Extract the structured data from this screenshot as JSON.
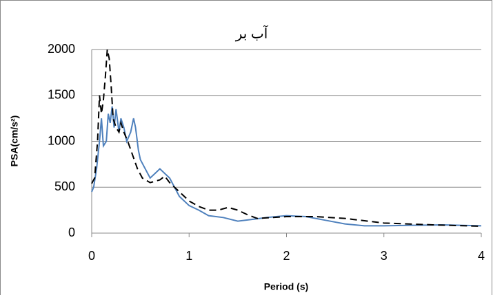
{
  "chart_data": {
    "type": "line",
    "title": "آب بر",
    "x_label": "Period (s)",
    "y_label": "PSA(cm/s²)",
    "xlim": [
      0,
      4
    ],
    "ylim": [
      0,
      2000
    ],
    "xticks": [
      0,
      1,
      2,
      3,
      4
    ],
    "yticks": [
      0,
      500,
      1000,
      1500,
      2000
    ],
    "grid": true,
    "series": [
      {
        "color": "#4f81bd",
        "dash": false,
        "x": [
          0,
          0.02,
          0.05,
          0.08,
          0.1,
          0.12,
          0.15,
          0.17,
          0.19,
          0.21,
          0.23,
          0.25,
          0.28,
          0.3,
          0.33,
          0.36,
          0.4,
          0.43,
          0.45,
          0.48,
          0.5,
          0.55,
          0.6,
          0.65,
          0.7,
          0.75,
          0.8,
          0.85,
          0.9,
          1.0,
          1.1,
          1.2,
          1.35,
          1.5,
          1.65,
          1.8,
          2.0,
          2.2,
          2.4,
          2.6,
          2.8,
          3.0,
          3.3,
          3.6,
          4.0
        ],
        "values": [
          450,
          500,
          700,
          1000,
          1250,
          950,
          1000,
          1300,
          1200,
          1380,
          1150,
          1350,
          1100,
          1250,
          1150,
          1000,
          1100,
          1250,
          1150,
          900,
          800,
          700,
          600,
          650,
          700,
          650,
          600,
          500,
          400,
          300,
          250,
          190,
          170,
          130,
          150,
          170,
          190,
          180,
          140,
          100,
          80,
          80,
          85,
          90,
          80
        ]
      },
      {
        "color": "#000000",
        "dash": true,
        "x": [
          0,
          0.03,
          0.06,
          0.08,
          0.1,
          0.12,
          0.14,
          0.16,
          0.18,
          0.2,
          0.22,
          0.25,
          0.28,
          0.3,
          0.33,
          0.37,
          0.42,
          0.47,
          0.52,
          0.6,
          0.7,
          0.75,
          0.8,
          0.9,
          1.0,
          1.1,
          1.2,
          1.3,
          1.4,
          1.5,
          1.6,
          1.7,
          2.0,
          2.3,
          2.6,
          3.0,
          3.5,
          4.0
        ],
        "values": [
          540,
          600,
          1000,
          1500,
          1300,
          1450,
          1700,
          2000,
          1900,
          1600,
          1250,
          1150,
          1100,
          1200,
          1100,
          1000,
          850,
          700,
          600,
          550,
          580,
          620,
          550,
          450,
          350,
          290,
          250,
          250,
          280,
          250,
          200,
          160,
          180,
          180,
          160,
          110,
          90,
          75
        ]
      }
    ]
  }
}
